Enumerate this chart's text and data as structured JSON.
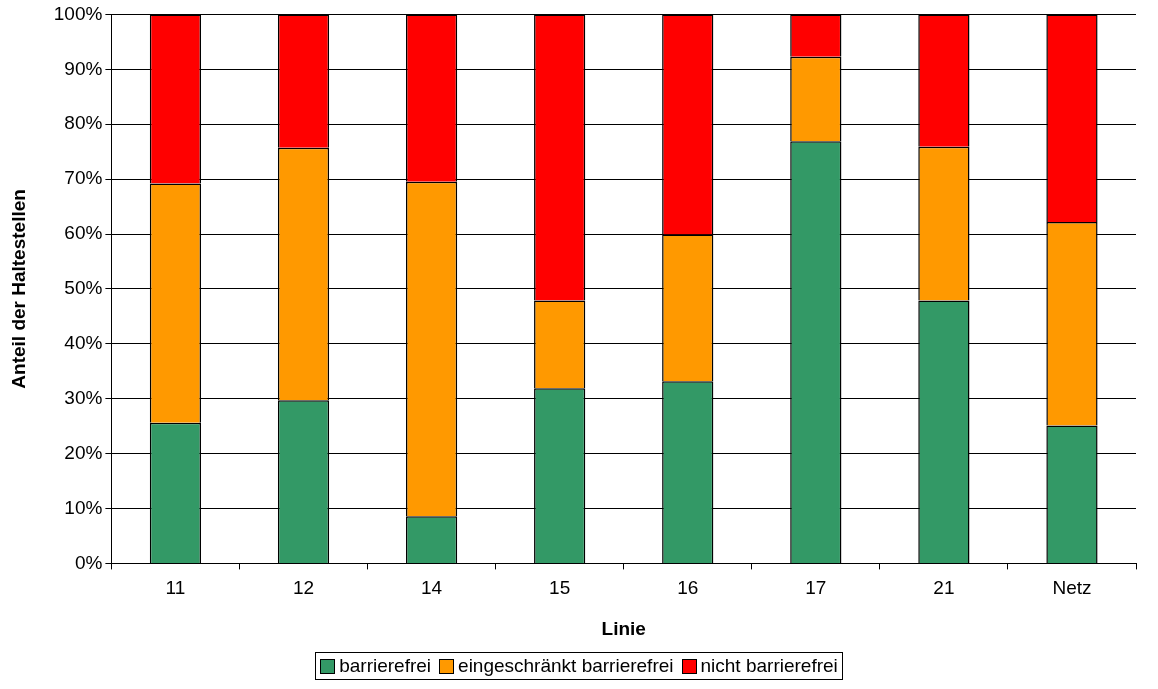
{
  "chart_data": {
    "type": "bar",
    "stacked": true,
    "xlabel": "Linie",
    "ylabel": "Anteil der Haltestellen",
    "categories": [
      "11",
      "12",
      "14",
      "15",
      "16",
      "17",
      "21",
      "Netz"
    ],
    "series": [
      {
        "name": "barrierefrei",
        "color": "#339966",
        "values": [
          25.6,
          29.7,
          8.6,
          31.9,
          33.2,
          76.9,
          47.9,
          25.1
        ]
      },
      {
        "name": "eingeschränkt barrierefrei",
        "color": "#ff9900",
        "values": [
          43.6,
          46.0,
          60.9,
          16.0,
          26.7,
          15.4,
          28.0,
          37.1
        ]
      },
      {
        "name": "nicht barrierefrei",
        "color": "#ff0000",
        "values": [
          30.8,
          24.3,
          30.5,
          52.1,
          40.1,
          7.7,
          24.1,
          37.8
        ]
      }
    ],
    "ylim": [
      0,
      100
    ],
    "yticks": [
      {
        "value": 0,
        "label": "0%"
      },
      {
        "value": 10,
        "label": "10%"
      },
      {
        "value": 20,
        "label": "20%"
      },
      {
        "value": 30,
        "label": "30%"
      },
      {
        "value": 40,
        "label": "40%"
      },
      {
        "value": 50,
        "label": "50%"
      },
      {
        "value": 60,
        "label": "60%"
      },
      {
        "value": 70,
        "label": "70%"
      },
      {
        "value": 80,
        "label": "80%"
      },
      {
        "value": 90,
        "label": "90%"
      },
      {
        "value": 100,
        "label": "100%"
      }
    ],
    "grid": "y",
    "legend": "bottom"
  }
}
